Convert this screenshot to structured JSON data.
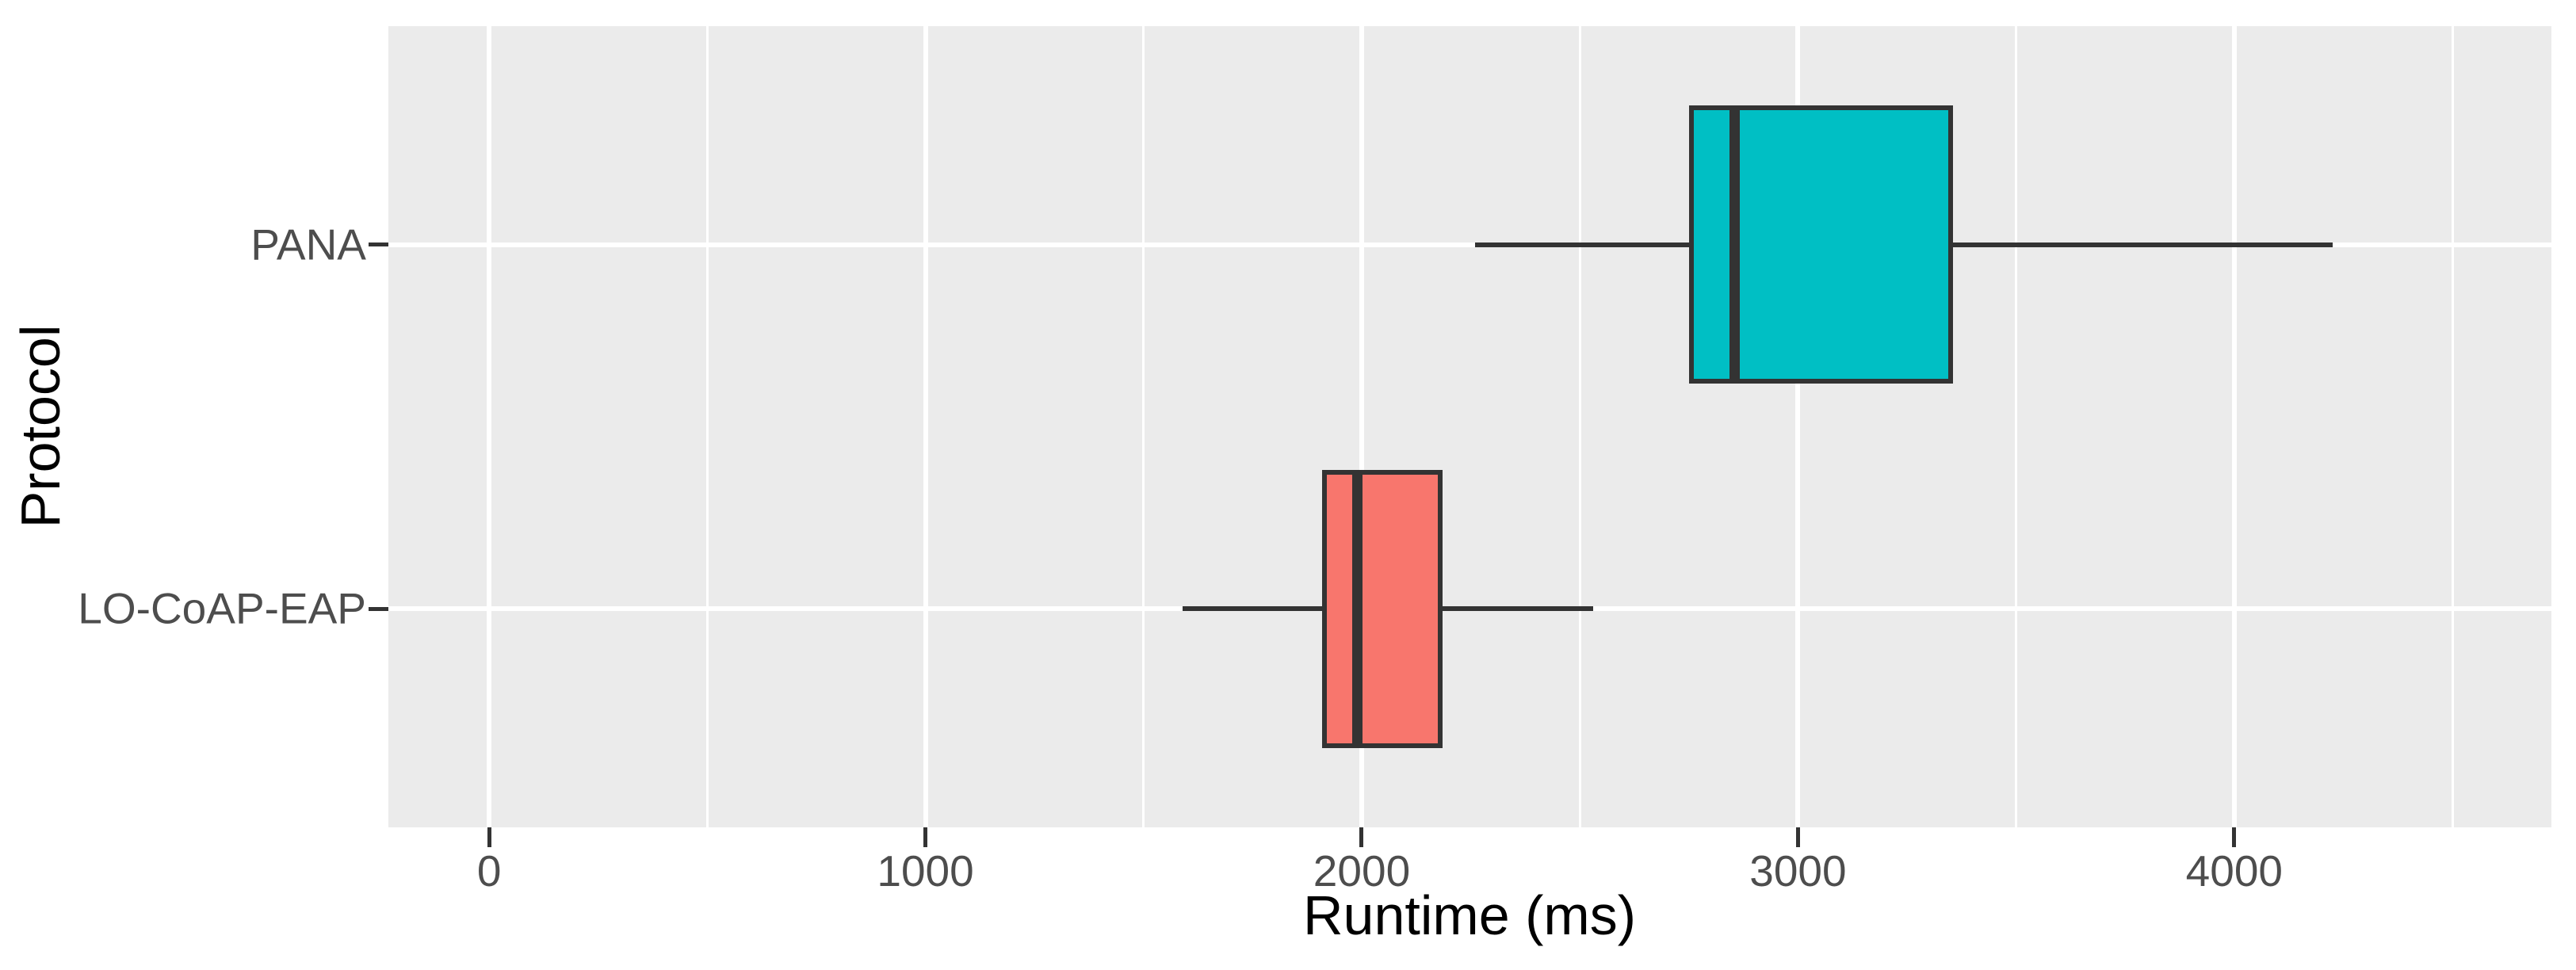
{
  "figure": {
    "background": "#FFFFFF",
    "panel_background": "#EBEBEB",
    "gridline_color": "#FFFFFF",
    "outline_color": "#333333",
    "axis_text_color": "#4D4D4D",
    "axis_title_color": "#000000"
  },
  "chart_data": {
    "type": "boxplot",
    "orientation": "horizontal",
    "title": "",
    "xlabel": "Runtime (ms)",
    "ylabel": "Protocol",
    "categories": [
      "PANA",
      "LO-CoAP-EAP"
    ],
    "series": [
      {
        "name": "PANA",
        "fill": "#00BFC4",
        "min": 2260,
        "q1": 2755,
        "median": 2855,
        "q3": 3350,
        "max": 4225,
        "outliers": []
      },
      {
        "name": "LO-CoAP-EAP",
        "fill": "#F8766D",
        "min": 1590,
        "q1": 1915,
        "median": 1990,
        "q3": 2180,
        "max": 2530,
        "outliers": []
      }
    ],
    "x_ticks": [
      0,
      1000,
      2000,
      3000,
      4000
    ],
    "x_tick_labels": [
      "0",
      "1000",
      "2000",
      "3000",
      "4000"
    ],
    "x_minor_gridlines": [
      500,
      1500,
      2500,
      3500,
      4500
    ],
    "xlim": [
      -231,
      4727
    ],
    "grid": true,
    "legend": false
  }
}
